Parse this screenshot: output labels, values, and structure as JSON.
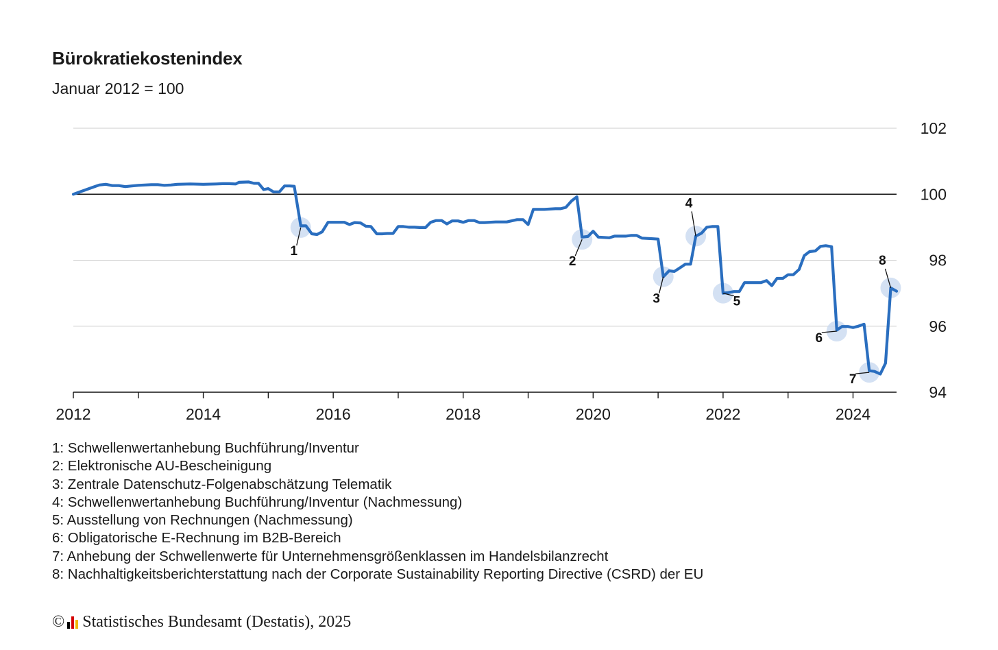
{
  "chart_data": {
    "type": "line",
    "title": "Bürokratiekostenindex",
    "subtitle": "Januar 2012 = 100",
    "xlabel": "",
    "ylabel": "",
    "xlim": [
      2012.0,
      2024.67
    ],
    "ylim": [
      94,
      102
    ],
    "y_ticks": [
      94,
      96,
      98,
      100,
      102
    ],
    "x_ticks": [
      2012,
      2014,
      2016,
      2018,
      2020,
      2022,
      2024
    ],
    "x_tick_labels": [
      "2012",
      "2014",
      "2016",
      "2018",
      "2020",
      "2022",
      "2024"
    ],
    "reference_line": 100,
    "grid": true,
    "y_axis_position": "right",
    "line_color": "#2a6ebf",
    "series": [
      {
        "name": "",
        "points": [
          [
            2012.0,
            100.0
          ],
          [
            2012.1,
            100.07
          ],
          [
            2012.2,
            100.14
          ],
          [
            2012.3,
            100.21
          ],
          [
            2012.4,
            100.28
          ],
          [
            2012.5,
            100.3
          ],
          [
            2012.6,
            100.26
          ],
          [
            2012.7,
            100.26
          ],
          [
            2012.8,
            100.23
          ],
          [
            2012.9,
            100.25
          ],
          [
            2013.0,
            100.27
          ],
          [
            2013.2,
            100.29
          ],
          [
            2013.3,
            100.29
          ],
          [
            2013.4,
            100.27
          ],
          [
            2013.5,
            100.28
          ],
          [
            2013.6,
            100.3
          ],
          [
            2013.8,
            100.31
          ],
          [
            2014.0,
            100.3
          ],
          [
            2014.2,
            100.31
          ],
          [
            2014.3,
            100.32
          ],
          [
            2014.4,
            100.32
          ],
          [
            2014.5,
            100.31
          ],
          [
            2014.55,
            100.36
          ],
          [
            2014.7,
            100.37
          ],
          [
            2014.78,
            100.33
          ],
          [
            2014.85,
            100.33
          ],
          [
            2014.93,
            100.14
          ],
          [
            2015.0,
            100.17
          ],
          [
            2015.08,
            100.07
          ],
          [
            2015.17,
            100.07
          ],
          [
            2015.25,
            100.25
          ],
          [
            2015.33,
            100.25
          ],
          [
            2015.4,
            100.24
          ],
          [
            2015.5,
            99.04
          ],
          [
            2015.58,
            99.04
          ],
          [
            2015.67,
            98.8
          ],
          [
            2015.75,
            98.78
          ],
          [
            2015.83,
            98.86
          ],
          [
            2015.92,
            99.15
          ],
          [
            2016.0,
            99.15
          ],
          [
            2016.08,
            99.15
          ],
          [
            2016.17,
            99.15
          ],
          [
            2016.25,
            99.08
          ],
          [
            2016.33,
            99.14
          ],
          [
            2016.42,
            99.13
          ],
          [
            2016.5,
            99.03
          ],
          [
            2016.58,
            99.02
          ],
          [
            2016.67,
            98.8
          ],
          [
            2016.75,
            98.8
          ],
          [
            2016.83,
            98.81
          ],
          [
            2016.92,
            98.81
          ],
          [
            2017.0,
            99.02
          ],
          [
            2017.08,
            99.02
          ],
          [
            2017.17,
            99.0
          ],
          [
            2017.25,
            99.0
          ],
          [
            2017.33,
            98.99
          ],
          [
            2017.42,
            98.99
          ],
          [
            2017.5,
            99.15
          ],
          [
            2017.58,
            99.2
          ],
          [
            2017.67,
            99.2
          ],
          [
            2017.75,
            99.1
          ],
          [
            2017.83,
            99.19
          ],
          [
            2017.92,
            99.19
          ],
          [
            2018.0,
            99.15
          ],
          [
            2018.08,
            99.2
          ],
          [
            2018.17,
            99.2
          ],
          [
            2018.25,
            99.14
          ],
          [
            2018.33,
            99.14
          ],
          [
            2018.5,
            99.16
          ],
          [
            2018.67,
            99.16
          ],
          [
            2018.83,
            99.23
          ],
          [
            2018.92,
            99.23
          ],
          [
            2019.0,
            99.08
          ],
          [
            2019.08,
            99.54
          ],
          [
            2019.25,
            99.54
          ],
          [
            2019.42,
            99.56
          ],
          [
            2019.5,
            99.56
          ],
          [
            2019.58,
            99.6
          ],
          [
            2019.67,
            99.8
          ],
          [
            2019.75,
            99.92
          ],
          [
            2019.83,
            98.7
          ],
          [
            2019.92,
            98.72
          ],
          [
            2020.0,
            98.88
          ],
          [
            2020.08,
            98.7
          ],
          [
            2020.25,
            98.68
          ],
          [
            2020.33,
            98.73
          ],
          [
            2020.5,
            98.73
          ],
          [
            2020.58,
            98.75
          ],
          [
            2020.67,
            98.75
          ],
          [
            2020.75,
            98.67
          ],
          [
            2020.92,
            98.65
          ],
          [
            2021.0,
            98.64
          ],
          [
            2021.08,
            97.5
          ],
          [
            2021.17,
            97.68
          ],
          [
            2021.25,
            97.66
          ],
          [
            2021.33,
            97.76
          ],
          [
            2021.42,
            97.88
          ],
          [
            2021.5,
            97.88
          ],
          [
            2021.58,
            98.73
          ],
          [
            2021.67,
            98.82
          ],
          [
            2021.75,
            99.0
          ],
          [
            2021.83,
            99.02
          ],
          [
            2021.92,
            99.02
          ],
          [
            2022.0,
            97.0
          ],
          [
            2022.08,
            97.02
          ],
          [
            2022.17,
            97.05
          ],
          [
            2022.25,
            97.05
          ],
          [
            2022.33,
            97.32
          ],
          [
            2022.42,
            97.32
          ],
          [
            2022.5,
            97.32
          ],
          [
            2022.58,
            97.32
          ],
          [
            2022.67,
            97.38
          ],
          [
            2022.75,
            97.23
          ],
          [
            2022.83,
            97.45
          ],
          [
            2022.92,
            97.45
          ],
          [
            2023.0,
            97.56
          ],
          [
            2023.08,
            97.56
          ],
          [
            2023.17,
            97.72
          ],
          [
            2023.25,
            98.14
          ],
          [
            2023.33,
            98.26
          ],
          [
            2023.42,
            98.28
          ],
          [
            2023.5,
            98.42
          ],
          [
            2023.58,
            98.44
          ],
          [
            2023.67,
            98.41
          ],
          [
            2023.75,
            95.88
          ],
          [
            2023.83,
            95.99
          ],
          [
            2023.92,
            95.99
          ],
          [
            2024.0,
            95.96
          ],
          [
            2024.08,
            96.0
          ],
          [
            2024.17,
            96.06
          ],
          [
            2024.25,
            94.65
          ],
          [
            2024.33,
            94.63
          ],
          [
            2024.42,
            94.55
          ],
          [
            2024.5,
            94.88
          ],
          [
            2024.58,
            97.16
          ],
          [
            2024.67,
            97.06
          ]
        ]
      }
    ],
    "markers": [
      {
        "label": "1",
        "x": 2015.5,
        "y": 98.99,
        "text_dx": -10,
        "text_dy": 40
      },
      {
        "label": "2",
        "x": 2019.83,
        "y": 98.63,
        "text_dx": -14,
        "text_dy": 38
      },
      {
        "label": "3",
        "x": 2021.08,
        "y": 97.5,
        "text_dx": -10,
        "text_dy": 38
      },
      {
        "label": "4",
        "x": 2021.58,
        "y": 98.73,
        "text_dx": -10,
        "text_dy": -42
      },
      {
        "label": "5",
        "x": 2022.0,
        "y": 97.0,
        "text_dx": 20,
        "text_dy": 18
      },
      {
        "label": "6",
        "x": 2023.75,
        "y": 95.85,
        "text_dx": -26,
        "text_dy": 16
      },
      {
        "label": "7",
        "x": 2024.25,
        "y": 94.6,
        "text_dx": -24,
        "text_dy": 16
      },
      {
        "label": "8",
        "x": 2024.58,
        "y": 97.16,
        "text_dx": -12,
        "text_dy": -34
      }
    ],
    "annotations": [
      "1: Schwellenwertanhebung Buchführung/Inventur",
      "2: Elektronische AU-Bescheinigung",
      "3: Zentrale Datenschutz-Folgenabschätzung Telematik",
      "4: Schwellenwertanhebung Buchführung/Inventur (Nachmessung)",
      "5: Ausstellung von Rechnungen (Nachmessung)",
      "6: Obligatorische E-Rechnung im B2B-Bereich",
      "7: Anhebung der Schwellenwerte für Unternehmensgrößenklassen im Handelsbilanzrecht",
      "8: Nachhaltigkeitsberichterstattung nach der Corporate Sustainability Reporting Directive (CSRD) der EU"
    ]
  },
  "footer": {
    "copyright": "©",
    "source": "Statistisches Bundesamt (Destatis), 2025",
    "logo_colors": [
      "#000000",
      "#d40000",
      "#f2b800"
    ]
  }
}
